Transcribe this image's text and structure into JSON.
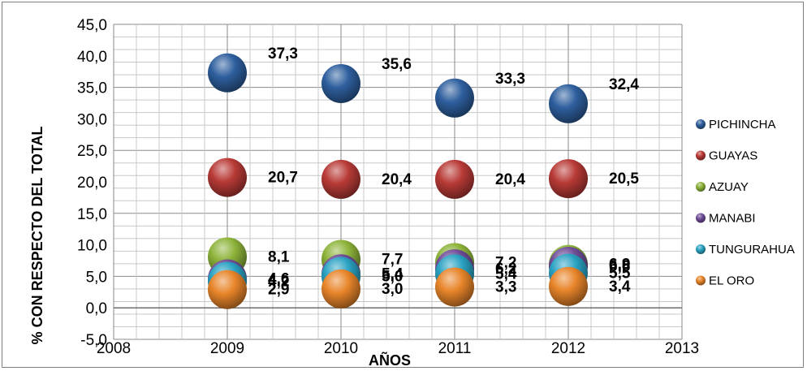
{
  "chart_data": {
    "type": "scatter",
    "x": [
      2009,
      2010,
      2011,
      2012
    ],
    "xlim": [
      2008,
      2013
    ],
    "xticks": [
      "2008",
      "2009",
      "2010",
      "2011",
      "2012",
      "2013"
    ],
    "ylim": [
      -5,
      45
    ],
    "yticks": [
      "-5,0",
      "0,0",
      "5,0",
      "10,0",
      "15,0",
      "20,0",
      "25,0",
      "30,0",
      "35,0",
      "40,0",
      "45,0"
    ],
    "xlabel": "AÑOS",
    "ylabel": "% CON RESPECTO DEL TOTAL",
    "grid": true,
    "legend_position": "right",
    "series": [
      {
        "name": "PICHINCHA",
        "color": "#2e5f9e",
        "values": [
          37.3,
          35.6,
          33.3,
          32.4
        ],
        "labels": [
          "37,3",
          "35,6",
          "33,3",
          "32,4"
        ]
      },
      {
        "name": "GUAYAS",
        "color": "#b83a36",
        "values": [
          20.7,
          20.4,
          20.4,
          20.5
        ],
        "labels": [
          "20,7",
          "20,4",
          "20,4",
          "20,5"
        ]
      },
      {
        "name": "AZUAY",
        "color": "#8db33a",
        "values": [
          8.1,
          7.7,
          7.2,
          6.9
        ],
        "labels": [
          "8,1",
          "7,7",
          "7,2",
          "6,9"
        ]
      },
      {
        "name": "MANABI",
        "color": "#6f4c97",
        "values": [
          4.6,
          5.4,
          6.2,
          6.6
        ],
        "labels": [
          "4,6",
          "5,4",
          "6,2",
          "6,6"
        ]
      },
      {
        "name": "TUNGURAHUA",
        "color": "#2aa2c2",
        "values": [
          4.2,
          5.0,
          5.4,
          5.5
        ],
        "labels": [
          "4,2",
          "5,0",
          "5,4",
          "5,5"
        ]
      },
      {
        "name": "EL ORO",
        "color": "#e8852a",
        "values": [
          2.9,
          3.0,
          3.3,
          3.4
        ],
        "labels": [
          "2,9",
          "3,0",
          "3,3",
          "3,4"
        ]
      }
    ]
  }
}
